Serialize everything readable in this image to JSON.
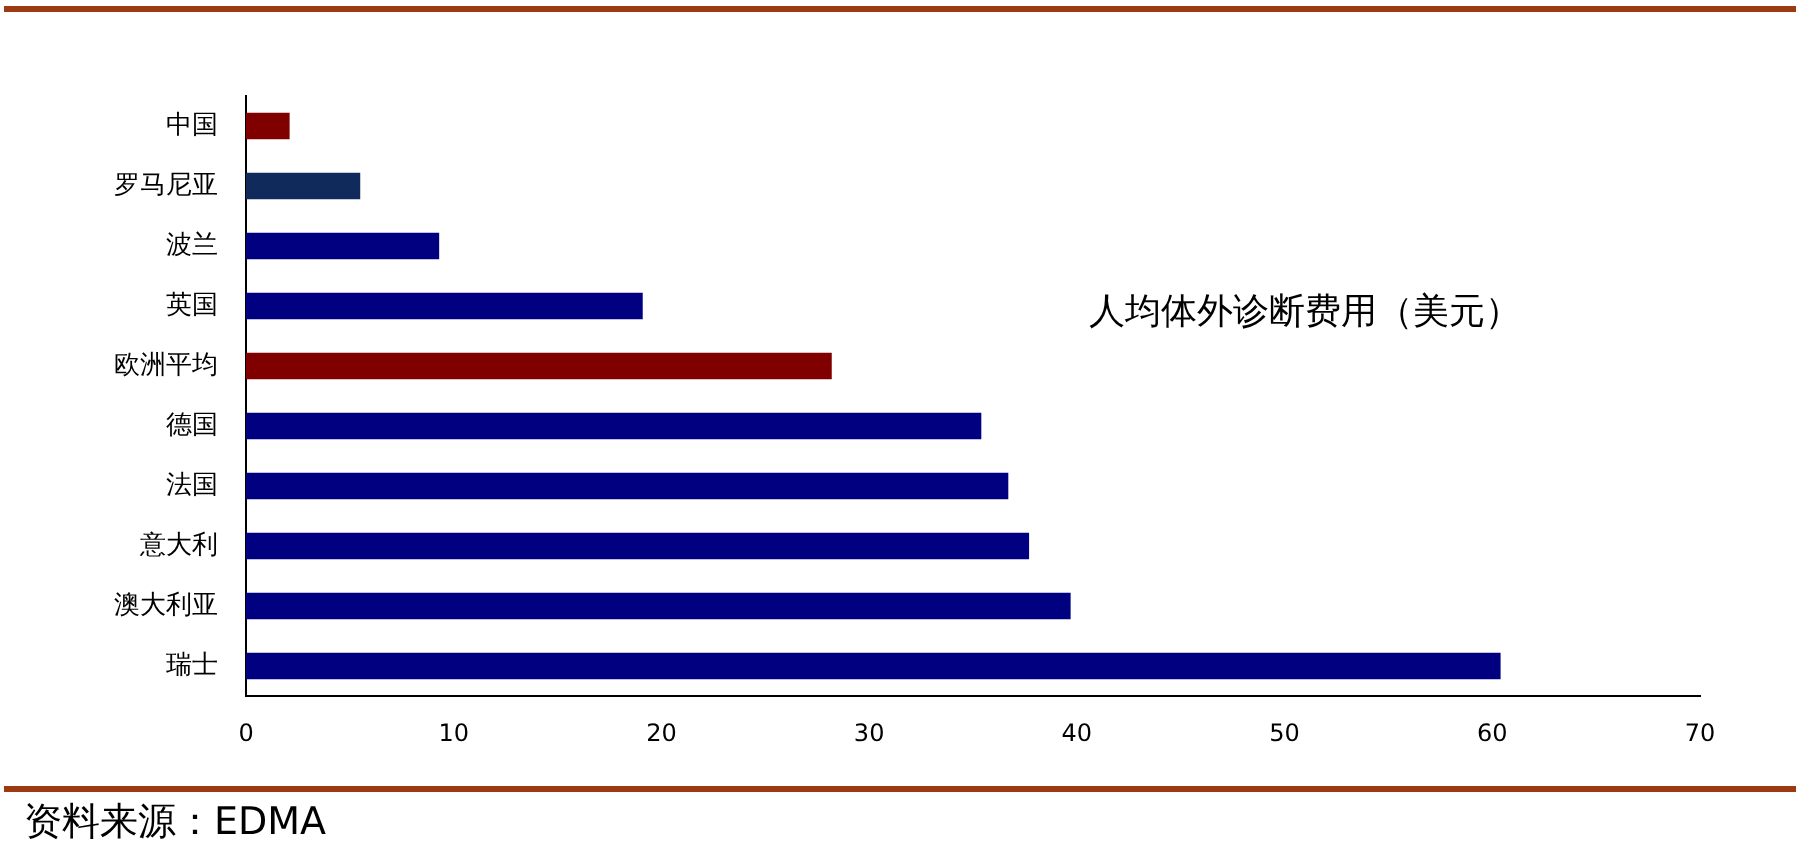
{
  "chart_data": {
    "type": "bar",
    "orientation": "horizontal",
    "title": "人均体外诊断费用（美元）",
    "categories": [
      "中国",
      "罗马尼亚",
      "波兰",
      "英国",
      "欧洲平均",
      "德国",
      "法国",
      "意大利",
      "澳大利亚",
      "瑞士"
    ],
    "values": [
      2.1,
      5.5,
      9.3,
      19.1,
      28.2,
      35.4,
      36.7,
      37.7,
      39.7,
      60.4
    ],
    "colors": [
      "#800000",
      "#112a5c",
      "#000080",
      "#000080",
      "#800000",
      "#000080",
      "#000080",
      "#000080",
      "#000080",
      "#000080"
    ],
    "xlim": [
      0,
      70
    ],
    "xticks": [
      0,
      10,
      20,
      30,
      40,
      50,
      60,
      70
    ],
    "grid": false,
    "legend": false,
    "annotations": [
      "资料来源：EDMA"
    ]
  }
}
